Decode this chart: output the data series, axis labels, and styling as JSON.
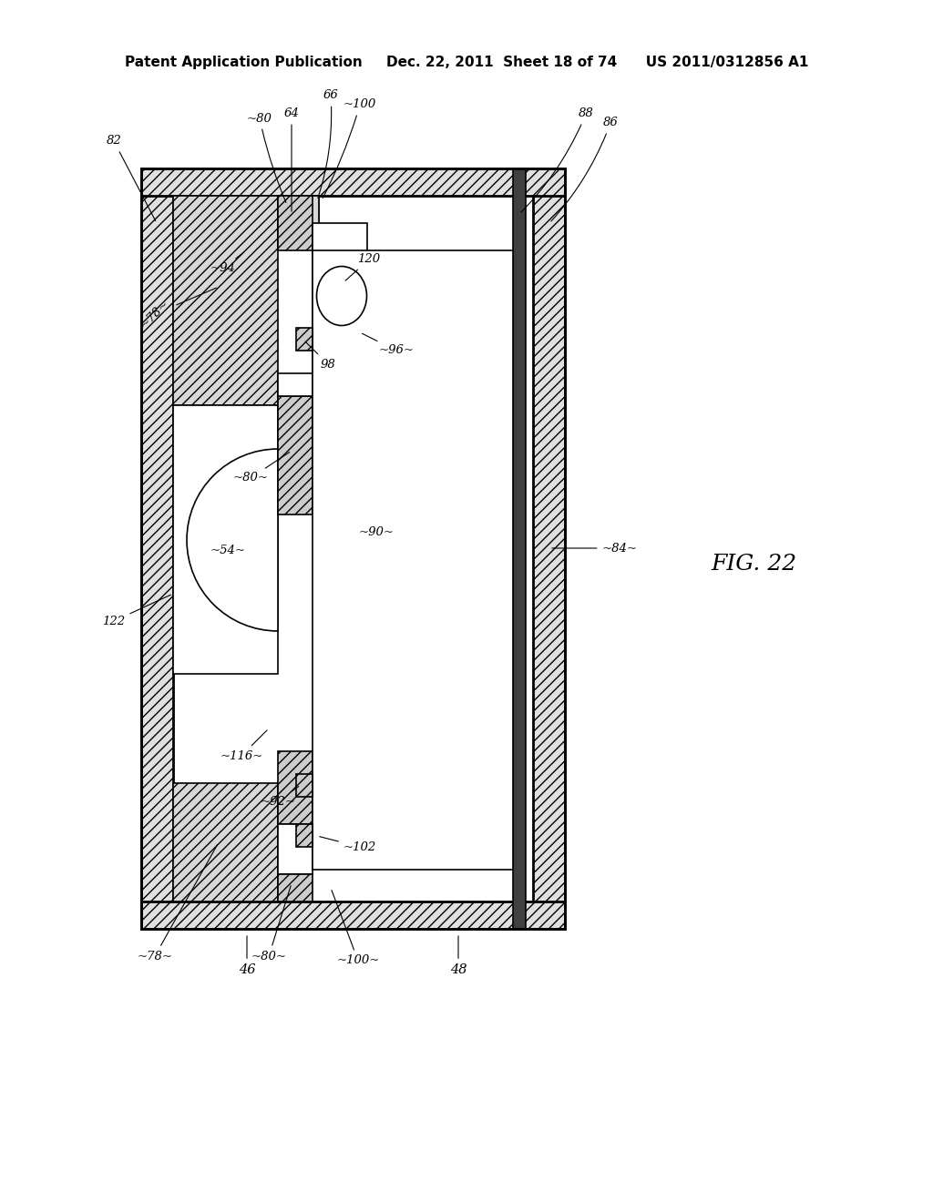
{
  "title_line": "Patent Application Publication     Dec. 22, 2011  Sheet 18 of 74      US 2011/0312856 A1",
  "fig_label": "FIG. 22",
  "bg_color": "#ffffff",
  "line_color": "#000000",
  "hatch_color": "#555555",
  "fig_label_fontsize": 18,
  "header_fontsize": 11,
  "label_fontsize": 9.5
}
